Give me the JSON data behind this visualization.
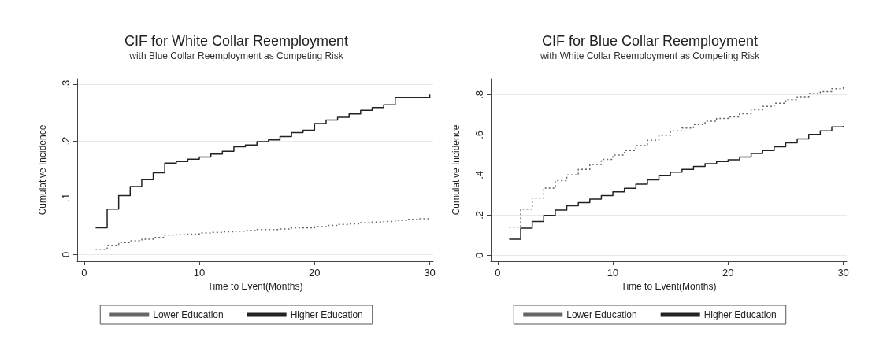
{
  "chart_data": [
    {
      "type": "step",
      "title": "CIF for White Collar Reemployment",
      "subtitle": "with Blue Collar Reemployment as Competing Risk",
      "xlabel": "Time to Event(Months)",
      "ylabel": "Cumulative Incidence",
      "x": [
        1,
        2,
        3,
        4,
        5,
        6,
        7,
        8,
        9,
        10,
        11,
        12,
        13,
        14,
        15,
        16,
        17,
        18,
        19,
        20,
        21,
        22,
        23,
        24,
        25,
        26,
        27,
        28,
        29,
        30
      ],
      "series": [
        {
          "name": "Lower Education",
          "color": "#666666",
          "line_style": "dotted",
          "values": [
            0.009,
            0.016,
            0.021,
            0.024,
            0.027,
            0.03,
            0.034,
            0.035,
            0.036,
            0.038,
            0.039,
            0.04,
            0.041,
            0.042,
            0.044,
            0.044,
            0.045,
            0.047,
            0.047,
            0.049,
            0.051,
            0.053,
            0.054,
            0.056,
            0.057,
            0.058,
            0.06,
            0.062,
            0.063,
            0.064
          ]
        },
        {
          "name": "Higher Education",
          "color": "#222222",
          "line_style": "solid",
          "values": [
            0.047,
            0.08,
            0.104,
            0.12,
            0.132,
            0.144,
            0.161,
            0.164,
            0.168,
            0.172,
            0.177,
            0.182,
            0.19,
            0.193,
            0.199,
            0.202,
            0.208,
            0.215,
            0.219,
            0.231,
            0.237,
            0.242,
            0.248,
            0.254,
            0.259,
            0.264,
            0.277,
            0.277,
            0.277,
            0.282
          ]
        }
      ],
      "xlim": [
        -0.6,
        30.3
      ],
      "xticks": [
        0,
        10,
        20,
        30
      ],
      "ylim": [
        -0.012,
        0.31
      ],
      "yticks": [
        0,
        {
          "value": 0.1,
          "label": ".1"
        },
        {
          "value": 0.2,
          "label": ".2"
        },
        {
          "value": 0.3,
          "label": ".3"
        }
      ],
      "grid": "y",
      "legend": "bottom",
      "marker": "none"
    },
    {
      "type": "step",
      "title": "CIF for Blue Collar Reemployment",
      "subtitle": "with White Collar Reemployment as Competing Risk",
      "xlabel": "Time to Event(Months)",
      "ylabel": "Cumulative Incidence",
      "x": [
        1,
        2,
        3,
        4,
        5,
        6,
        7,
        8,
        9,
        10,
        11,
        12,
        13,
        14,
        15,
        16,
        17,
        18,
        19,
        20,
        21,
        22,
        23,
        24,
        25,
        26,
        27,
        28,
        29,
        30
      ],
      "series": [
        {
          "name": "Lower Education",
          "color": "#666666",
          "line_style": "dotted",
          "values": [
            0.14,
            0.23,
            0.285,
            0.335,
            0.372,
            0.4,
            0.428,
            0.452,
            0.478,
            0.5,
            0.522,
            0.547,
            0.573,
            0.598,
            0.62,
            0.634,
            0.652,
            0.668,
            0.682,
            0.69,
            0.705,
            0.725,
            0.742,
            0.757,
            0.775,
            0.79,
            0.805,
            0.815,
            0.83,
            0.845
          ]
        },
        {
          "name": "Higher Education",
          "color": "#222222",
          "line_style": "solid",
          "values": [
            0.08,
            0.135,
            0.168,
            0.198,
            0.225,
            0.247,
            0.262,
            0.28,
            0.298,
            0.316,
            0.334,
            0.354,
            0.376,
            0.397,
            0.414,
            0.428,
            0.443,
            0.456,
            0.467,
            0.476,
            0.49,
            0.507,
            0.522,
            0.541,
            0.56,
            0.58,
            0.602,
            0.62,
            0.64,
            0.645
          ]
        }
      ],
      "xlim": [
        -0.6,
        30.3
      ],
      "xticks": [
        0,
        10,
        20,
        30
      ],
      "ylim": [
        -0.03,
        0.88
      ],
      "yticks": [
        0,
        {
          "value": 0.2,
          "label": ".2"
        },
        {
          "value": 0.4,
          "label": ".4"
        },
        {
          "value": 0.6,
          "label": ".6"
        },
        {
          "value": 0.8,
          "label": ".8"
        }
      ],
      "grid": "y",
      "legend": "bottom",
      "marker": "none"
    }
  ]
}
